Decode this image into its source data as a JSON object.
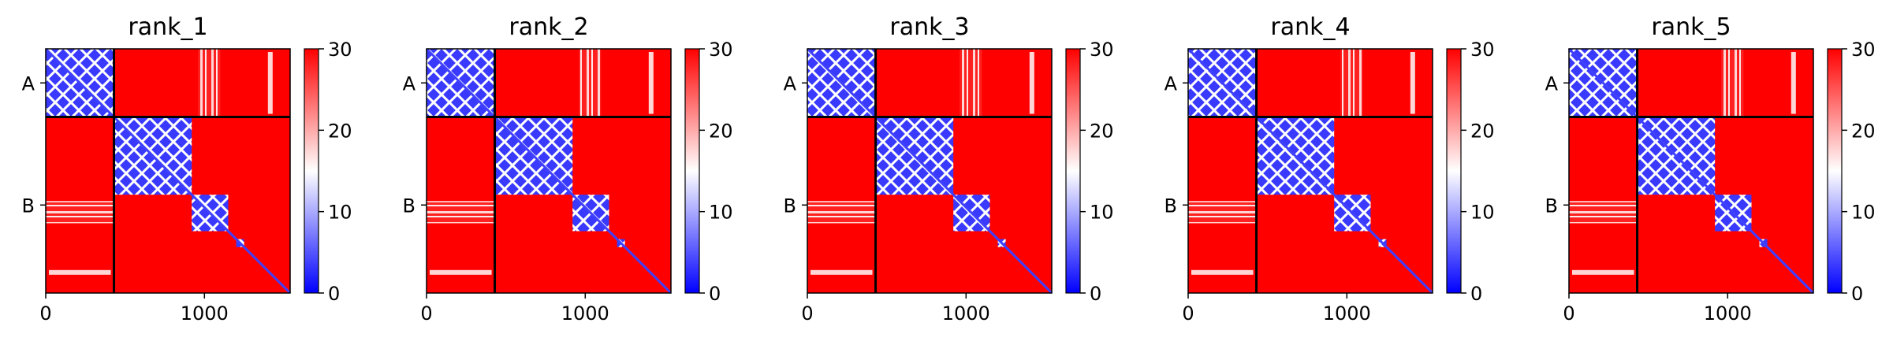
{
  "chart_data": {
    "type": "heatmap",
    "chains": [
      "A",
      "B"
    ],
    "chain_boundary": 430,
    "total_length": 1540,
    "x_ticks": [
      0,
      1000
    ],
    "colorbar": {
      "min": 0,
      "max": 30,
      "ticks": [
        0,
        10,
        20,
        30
      ],
      "colormap": "bwr",
      "colors": [
        "#0000ff",
        "#ffffff",
        "#ff0000"
      ]
    },
    "panels": [
      {
        "title": "rank_1",
        "chain_a_domains": [
          [
            0,
            430
          ]
        ],
        "chain_b_domains": [
          [
            430,
            920
          ],
          [
            920,
            1150
          ],
          [
            1200,
            1250
          ]
        ]
      },
      {
        "title": "rank_2",
        "chain_a_domains": [
          [
            0,
            430
          ]
        ],
        "chain_b_domains": [
          [
            430,
            920
          ],
          [
            920,
            1150
          ],
          [
            1200,
            1250
          ]
        ]
      },
      {
        "title": "rank_3",
        "chain_a_domains": [
          [
            0,
            430
          ]
        ],
        "chain_b_domains": [
          [
            430,
            920
          ],
          [
            920,
            1150
          ],
          [
            1200,
            1250
          ]
        ]
      },
      {
        "title": "rank_4",
        "chain_a_domains": [
          [
            0,
            430
          ]
        ],
        "chain_b_domains": [
          [
            430,
            920
          ],
          [
            920,
            1150
          ],
          [
            1200,
            1250
          ]
        ]
      },
      {
        "title": "rank_5",
        "chain_a_domains": [
          [
            0,
            430
          ]
        ],
        "chain_b_domains": [
          [
            430,
            920
          ],
          [
            920,
            1150
          ],
          [
            1200,
            1250
          ]
        ]
      }
    ]
  }
}
